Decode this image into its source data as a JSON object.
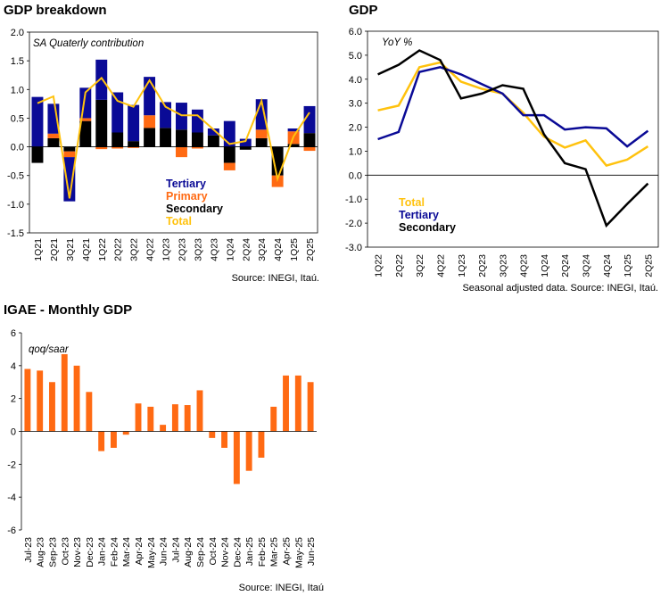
{
  "charts": {
    "breakdown": {
      "title": "GDP breakdown",
      "source": "Source: INEGI, Itaú.",
      "chart_data": {
        "type": "bar",
        "stacked": true,
        "annotation": "SA Quaterly contribution",
        "categories": [
          "1Q21",
          "2Q21",
          "3Q21",
          "4Q21",
          "1Q22",
          "2Q22",
          "3Q22",
          "4Q22",
          "1Q23",
          "2Q23",
          "3Q23",
          "4Q23",
          "1Q24",
          "2Q24",
          "3Q24",
          "4Q24",
          "1Q25",
          "2Q25"
        ],
        "ylim": [
          -1.5,
          2.0
        ],
        "yticks": [
          "2.0",
          "1.5",
          "1.0",
          "0.5",
          "0.0",
          "-0.5",
          "-1.0",
          "-1.5"
        ],
        "yticks_values": [
          2.0,
          1.5,
          1.0,
          0.5,
          0.0,
          -0.5,
          -1.0,
          -1.5
        ],
        "series": [
          {
            "name": "Secondary",
            "color": "#000000",
            "values": [
              -0.28,
              0.15,
              -0.08,
              0.45,
              0.82,
              0.25,
              0.1,
              0.33,
              0.33,
              0.3,
              0.25,
              0.2,
              -0.28,
              -0.05,
              0.15,
              -0.5,
              0.05,
              0.24
            ]
          },
          {
            "name": "Primary",
            "color": "#FF6A13",
            "values": [
              0.0,
              0.08,
              -0.1,
              0.05,
              -0.04,
              -0.03,
              -0.02,
              0.22,
              0.0,
              -0.18,
              -0.03,
              0.0,
              -0.13,
              0.0,
              0.15,
              -0.2,
              0.22,
              -0.07
            ]
          },
          {
            "name": "Tertiary",
            "color": "#0A0A96",
            "values": [
              0.87,
              0.52,
              -0.77,
              0.53,
              0.7,
              0.7,
              0.63,
              0.67,
              0.45,
              0.47,
              0.4,
              0.12,
              0.45,
              0.14,
              0.53,
              0.0,
              0.05,
              0.47
            ]
          }
        ],
        "total": {
          "name": "Total",
          "color": "#FFC20E",
          "values": [
            0.76,
            0.88,
            -0.9,
            0.95,
            1.2,
            0.8,
            0.7,
            1.16,
            0.7,
            0.55,
            0.55,
            0.3,
            0.05,
            0.1,
            0.8,
            -0.56,
            0.18,
            0.6
          ]
        },
        "legend_order": [
          "Tertiary",
          "Primary",
          "Secondary",
          "Total"
        ],
        "grid": false
      }
    },
    "yoy": {
      "title": "GDP",
      "source": "Seasonal adjusted data. Source: INEGI, Itaú.",
      "chart_data": {
        "type": "line",
        "annotation": "YoY %",
        "categories": [
          "1Q22",
          "2Q22",
          "3Q22",
          "4Q22",
          "1Q23",
          "2Q23",
          "3Q23",
          "4Q23",
          "1Q24",
          "2Q24",
          "3Q24",
          "4Q24",
          "1Q25",
          "2Q25"
        ],
        "ylim": [
          -3.0,
          6.0
        ],
        "yticks": [
          "6.0",
          "5.0",
          "4.0",
          "3.0",
          "2.0",
          "1.0",
          "0.0",
          "-1.0",
          "-2.0",
          "-3.0"
        ],
        "yticks_values": [
          6,
          5,
          4,
          3,
          2,
          1,
          0,
          -1,
          -2,
          -3
        ],
        "series": [
          {
            "name": "Total",
            "color": "#FFC20E",
            "values": [
              2.7,
              2.9,
              4.5,
              4.7,
              3.9,
              3.6,
              3.4,
              2.6,
              1.6,
              1.15,
              1.45,
              0.4,
              0.65,
              1.2
            ]
          },
          {
            "name": "Tertiary",
            "color": "#0A0A96",
            "values": [
              1.5,
              1.8,
              4.3,
              4.5,
              4.2,
              3.8,
              3.4,
              2.5,
              2.5,
              1.9,
              2.0,
              1.95,
              1.2,
              1.85
            ]
          },
          {
            "name": "Secondary",
            "color": "#000000",
            "values": [
              4.2,
              4.6,
              5.2,
              4.8,
              3.2,
              3.4,
              3.75,
              3.6,
              1.7,
              0.5,
              0.25,
              -2.1,
              -1.2,
              -0.35
            ]
          }
        ],
        "legend_order": [
          "Total",
          "Tertiary",
          "Secondary"
        ],
        "grid": false
      }
    },
    "igae": {
      "title": "IGAE - Monthly GDP",
      "source": "Source: INEGI, Itaú",
      "chart_data": {
        "type": "bar",
        "annotation": "qoq/saar",
        "color": "#FF6A13",
        "categories": [
          "Jul-23",
          "Aug-23",
          "Sep-23",
          "Oct-23",
          "Nov-23",
          "Dec-23",
          "Jan-24",
          "Feb-24",
          "Mar-24",
          "Apr-24",
          "May-24",
          "Jun-24",
          "Jul-24",
          "Aug-24",
          "Sep-24",
          "Oct-24",
          "Nov-24",
          "Dec-24",
          "Jan-25",
          "Feb-25",
          "Mar-25",
          "Apr-25",
          "May-25",
          "Jun-25"
        ],
        "values": [
          3.8,
          3.7,
          3.0,
          4.7,
          4.0,
          2.4,
          -1.2,
          -1.0,
          -0.2,
          1.7,
          1.5,
          0.4,
          1.65,
          1.6,
          2.5,
          -0.4,
          -1.0,
          -3.2,
          -2.4,
          -1.6,
          1.5,
          3.4,
          3.4,
          3.0
        ],
        "ylim": [
          -6,
          6
        ],
        "yticks": [
          "6",
          "4",
          "2",
          "0",
          "-2",
          "-4",
          "-6"
        ],
        "yticks_values": [
          6,
          4,
          2,
          0,
          -2,
          -4,
          -6
        ],
        "grid": false
      }
    }
  }
}
